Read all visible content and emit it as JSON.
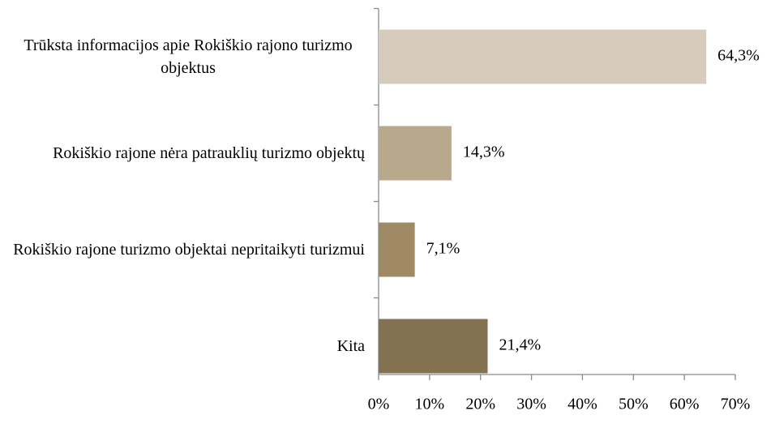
{
  "chart_data": {
    "type": "bar",
    "orientation": "horizontal",
    "categories": [
      "Trūksta informacijos apie Rokiškio rajono turizmo objektus",
      "Rokiškio rajone nėra patrauklių turizmo objektų",
      "Rokiškio rajone turizmo objektai nepritaikyti turizmui",
      "Kita"
    ],
    "values": [
      64.3,
      14.3,
      7.1,
      21.4
    ],
    "value_labels": [
      "64,3%",
      "14,3%",
      "7,1%",
      "21,4%"
    ],
    "colors": [
      "#d6ccbe",
      "#b9a98c",
      "#a08a65",
      "#837252"
    ],
    "xlim": [
      0,
      70
    ],
    "xticks": [
      {
        "value": 0,
        "label": "0%"
      },
      {
        "value": 10,
        "label": "10%"
      },
      {
        "value": 20,
        "label": "20%"
      },
      {
        "value": 30,
        "label": "30%"
      },
      {
        "value": 40,
        "label": "40%"
      },
      {
        "value": 50,
        "label": "50%"
      },
      {
        "value": 60,
        "label": "60%"
      },
      {
        "value": 70,
        "label": "70%"
      }
    ]
  }
}
